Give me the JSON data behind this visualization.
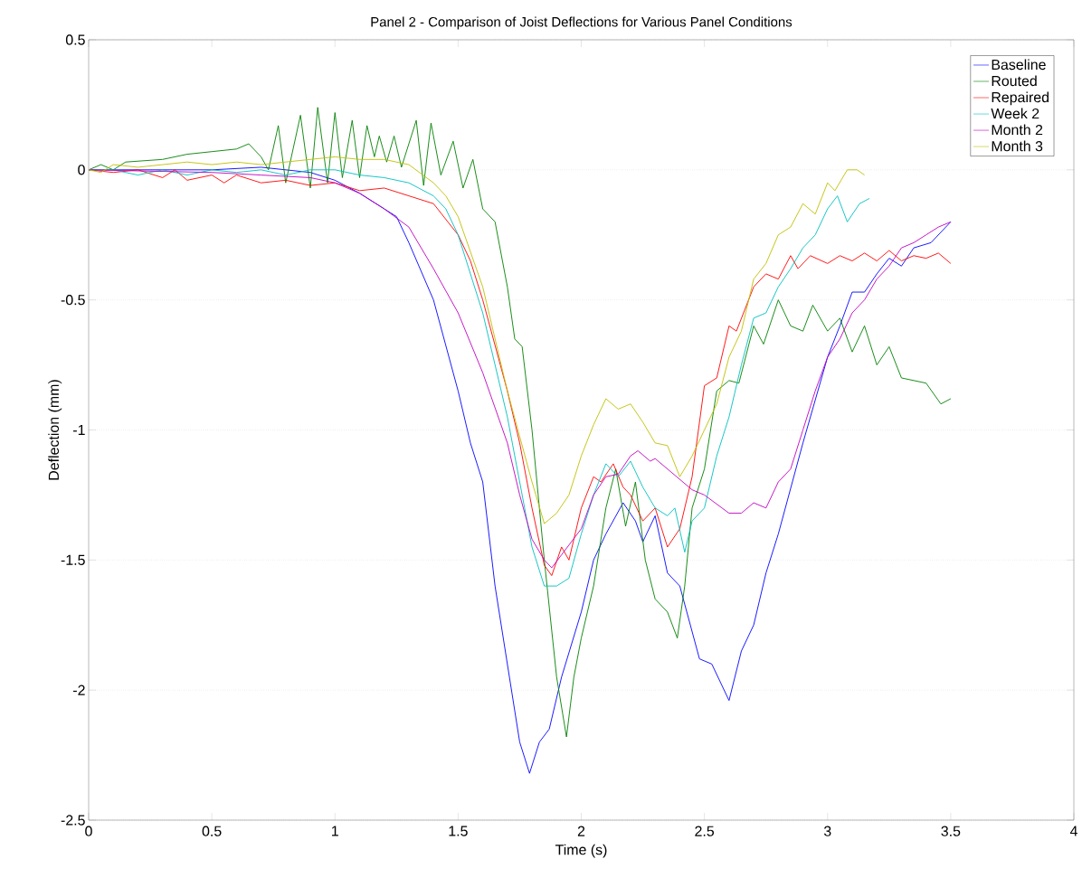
{
  "chart_data": {
    "type": "line",
    "title": "Panel 2 - Comparison of Joist Deflections for Various Panel Conditions",
    "xlabel": "Time (s)",
    "ylabel": "Deflection (mm)",
    "xlim": [
      0,
      4
    ],
    "ylim": [
      -2.5,
      0.5
    ],
    "xticks": [
      0,
      0.5,
      1,
      1.5,
      2,
      2.5,
      3,
      3.5,
      4
    ],
    "yticks": [
      -2.5,
      -2,
      -1.5,
      -1,
      -0.5,
      0,
      0.5
    ],
    "grid": "y",
    "legend": "top right",
    "marker": "none",
    "line_style": "solid",
    "series": [
      {
        "name": "Baseline",
        "color": "#0000ff",
        "x": [
          0,
          0.2,
          0.5,
          0.7,
          0.9,
          1.0,
          1.1,
          1.2,
          1.25,
          1.3,
          1.4,
          1.5,
          1.55,
          1.6,
          1.65,
          1.7,
          1.75,
          1.79,
          1.83,
          1.87,
          1.92,
          2.0,
          2.05,
          2.1,
          2.17,
          2.22,
          2.25,
          2.3,
          2.35,
          2.4,
          2.48,
          2.53,
          2.6,
          2.65,
          2.7,
          2.75,
          2.8,
          2.9,
          3.0,
          3.05,
          3.1,
          3.15,
          3.2,
          3.25,
          3.3,
          3.35,
          3.42,
          3.5
        ],
        "values": [
          0,
          0,
          0,
          0.01,
          -0.01,
          -0.04,
          -0.09,
          -0.15,
          -0.18,
          -0.28,
          -0.5,
          -0.85,
          -1.05,
          -1.2,
          -1.6,
          -1.9,
          -2.2,
          -2.32,
          -2.2,
          -2.15,
          -1.95,
          -1.7,
          -1.5,
          -1.4,
          -1.28,
          -1.35,
          -1.43,
          -1.33,
          -1.55,
          -1.6,
          -1.88,
          -1.9,
          -2.04,
          -1.85,
          -1.75,
          -1.55,
          -1.4,
          -1.05,
          -0.72,
          -0.6,
          -0.47,
          -0.47,
          -0.4,
          -0.34,
          -0.37,
          -0.3,
          -0.28,
          -0.2
        ]
      },
      {
        "name": "Routed",
        "color": "#008000",
        "x": [
          0,
          0.05,
          0.1,
          0.15,
          0.3,
          0.4,
          0.5,
          0.6,
          0.65,
          0.7,
          0.73,
          0.77,
          0.8,
          0.86,
          0.9,
          0.93,
          0.97,
          1.0,
          1.03,
          1.07,
          1.1,
          1.13,
          1.16,
          1.18,
          1.21,
          1.24,
          1.27,
          1.33,
          1.36,
          1.39,
          1.43,
          1.48,
          1.52,
          1.56,
          1.6,
          1.65,
          1.7,
          1.73,
          1.76,
          1.8,
          1.85,
          1.9,
          1.94,
          1.97,
          2.0,
          2.05,
          2.1,
          2.14,
          2.18,
          2.22,
          2.26,
          2.3,
          2.35,
          2.39,
          2.42,
          2.45,
          2.5,
          2.55,
          2.6,
          2.64,
          2.7,
          2.74,
          2.8,
          2.85,
          2.9,
          2.94,
          3.0,
          3.05,
          3.1,
          3.15,
          3.2,
          3.25,
          3.3,
          3.4,
          3.46,
          3.5
        ],
        "values": [
          0,
          0.02,
          0.0,
          0.03,
          0.04,
          0.06,
          0.07,
          0.08,
          0.1,
          0.05,
          0.0,
          0.17,
          -0.05,
          0.21,
          -0.07,
          0.24,
          -0.05,
          0.22,
          -0.03,
          0.19,
          -0.03,
          0.17,
          0.05,
          0.13,
          0.03,
          0.13,
          0.01,
          0.19,
          -0.06,
          0.18,
          -0.02,
          0.11,
          -0.07,
          0.04,
          -0.15,
          -0.2,
          -0.45,
          -0.65,
          -0.68,
          -1.0,
          -1.5,
          -1.95,
          -2.18,
          -1.95,
          -1.8,
          -1.6,
          -1.3,
          -1.15,
          -1.37,
          -1.2,
          -1.5,
          -1.65,
          -1.7,
          -1.8,
          -1.6,
          -1.3,
          -1.15,
          -0.85,
          -0.81,
          -0.82,
          -0.6,
          -0.67,
          -0.5,
          -0.6,
          -0.62,
          -0.52,
          -0.62,
          -0.57,
          -0.7,
          -0.6,
          -0.75,
          -0.68,
          -0.8,
          -0.82,
          -0.9,
          -0.88
        ]
      },
      {
        "name": "Repaired",
        "color": "#ff0000",
        "x": [
          0,
          0.1,
          0.2,
          0.3,
          0.35,
          0.4,
          0.5,
          0.55,
          0.6,
          0.7,
          0.8,
          0.9,
          1.0,
          1.1,
          1.2,
          1.3,
          1.4,
          1.5,
          1.55,
          1.6,
          1.7,
          1.75,
          1.8,
          1.85,
          1.88,
          1.92,
          1.95,
          2.0,
          2.05,
          2.08,
          2.13,
          2.17,
          2.2,
          2.25,
          2.3,
          2.35,
          2.4,
          2.45,
          2.5,
          2.55,
          2.6,
          2.63,
          2.7,
          2.75,
          2.8,
          2.85,
          2.88,
          2.93,
          3.0,
          3.05,
          3.1,
          3.15,
          3.2,
          3.25,
          3.3,
          3.35,
          3.4,
          3.45,
          3.5
        ],
        "values": [
          0,
          -0.01,
          0.0,
          -0.03,
          0.0,
          -0.04,
          -0.02,
          -0.05,
          -0.02,
          -0.05,
          -0.04,
          -0.06,
          -0.05,
          -0.08,
          -0.07,
          -0.1,
          -0.13,
          -0.25,
          -0.35,
          -0.5,
          -0.85,
          -1.05,
          -1.3,
          -1.52,
          -1.56,
          -1.45,
          -1.5,
          -1.3,
          -1.18,
          -1.2,
          -1.13,
          -1.22,
          -1.25,
          -1.35,
          -1.3,
          -1.45,
          -1.38,
          -1.18,
          -0.83,
          -0.8,
          -0.6,
          -0.62,
          -0.45,
          -0.4,
          -0.42,
          -0.33,
          -0.38,
          -0.33,
          -0.36,
          -0.33,
          -0.35,
          -0.32,
          -0.35,
          -0.31,
          -0.35,
          -0.33,
          -0.34,
          -0.32,
          -0.36
        ]
      },
      {
        "name": "Week 2",
        "color": "#00bfbf",
        "x": [
          0,
          0.1,
          0.2,
          0.3,
          0.4,
          0.5,
          0.6,
          0.7,
          0.8,
          0.9,
          1.0,
          1.1,
          1.2,
          1.3,
          1.4,
          1.45,
          1.5,
          1.6,
          1.7,
          1.75,
          1.8,
          1.85,
          1.9,
          1.95,
          2.0,
          2.05,
          2.1,
          2.15,
          2.2,
          2.25,
          2.3,
          2.35,
          2.38,
          2.42,
          2.45,
          2.5,
          2.55,
          2.6,
          2.65,
          2.7,
          2.75,
          2.8,
          2.85,
          2.9,
          2.95,
          3.0,
          3.04,
          3.08,
          3.13,
          3.17
        ],
        "values": [
          0,
          0.0,
          -0.02,
          0.0,
          -0.02,
          0.0,
          -0.01,
          0.0,
          -0.02,
          0.0,
          0.0,
          -0.02,
          -0.03,
          -0.05,
          -0.1,
          -0.15,
          -0.25,
          -0.55,
          -0.95,
          -1.2,
          -1.45,
          -1.6,
          -1.6,
          -1.57,
          -1.4,
          -1.25,
          -1.13,
          -1.18,
          -1.12,
          -1.22,
          -1.3,
          -1.33,
          -1.3,
          -1.47,
          -1.35,
          -1.3,
          -1.1,
          -0.95,
          -0.75,
          -0.57,
          -0.55,
          -0.45,
          -0.38,
          -0.3,
          -0.25,
          -0.15,
          -0.1,
          -0.2,
          -0.13,
          -0.11
        ]
      },
      {
        "name": "Month 2",
        "color": "#bf00bf",
        "x": [
          0,
          0.5,
          0.7,
          0.9,
          1.0,
          1.1,
          1.2,
          1.3,
          1.4,
          1.5,
          1.6,
          1.7,
          1.75,
          1.8,
          1.85,
          1.88,
          1.92,
          2.0,
          2.05,
          2.1,
          2.15,
          2.2,
          2.23,
          2.28,
          2.3,
          2.35,
          2.4,
          2.45,
          2.5,
          2.6,
          2.65,
          2.7,
          2.75,
          2.8,
          2.85,
          2.9,
          2.95,
          3.0,
          3.05,
          3.1,
          3.15,
          3.2,
          3.25,
          3.3,
          3.35,
          3.4,
          3.45,
          3.5
        ],
        "values": [
          0,
          -0.01,
          -0.02,
          -0.03,
          -0.05,
          -0.09,
          -0.15,
          -0.22,
          -0.38,
          -0.55,
          -0.78,
          -1.05,
          -1.25,
          -1.42,
          -1.5,
          -1.53,
          -1.48,
          -1.38,
          -1.25,
          -1.18,
          -1.17,
          -1.1,
          -1.08,
          -1.12,
          -1.11,
          -1.15,
          -1.19,
          -1.23,
          -1.25,
          -1.32,
          -1.32,
          -1.28,
          -1.3,
          -1.2,
          -1.15,
          -1.0,
          -0.85,
          -0.72,
          -0.65,
          -0.55,
          -0.5,
          -0.42,
          -0.37,
          -0.3,
          -0.28,
          -0.25,
          -0.22,
          -0.2
        ]
      },
      {
        "name": "Month 3",
        "color": "#bfbf00",
        "x": [
          0,
          0.05,
          0.1,
          0.2,
          0.3,
          0.4,
          0.5,
          0.6,
          0.7,
          0.8,
          0.9,
          1.0,
          1.1,
          1.2,
          1.3,
          1.4,
          1.45,
          1.5,
          1.6,
          1.7,
          1.8,
          1.85,
          1.9,
          1.95,
          2.0,
          2.05,
          2.1,
          2.15,
          2.2,
          2.25,
          2.3,
          2.35,
          2.4,
          2.45,
          2.5,
          2.55,
          2.6,
          2.65,
          2.7,
          2.75,
          2.8,
          2.85,
          2.9,
          2.95,
          3.0,
          3.03,
          3.08,
          3.12,
          3.15
        ],
        "values": [
          0,
          -0.01,
          0.02,
          0.01,
          0.02,
          0.03,
          0.02,
          0.03,
          0.02,
          0.03,
          0.04,
          0.05,
          0.04,
          0.04,
          0.02,
          -0.05,
          -0.1,
          -0.18,
          -0.45,
          -0.85,
          -1.2,
          -1.36,
          -1.32,
          -1.25,
          -1.1,
          -0.98,
          -0.88,
          -0.92,
          -0.9,
          -0.97,
          -1.05,
          -1.06,
          -1.18,
          -1.1,
          -1.0,
          -0.9,
          -0.72,
          -0.62,
          -0.42,
          -0.36,
          -0.25,
          -0.22,
          -0.13,
          -0.17,
          -0.05,
          -0.08,
          0.0,
          0.0,
          -0.02
        ]
      }
    ]
  }
}
